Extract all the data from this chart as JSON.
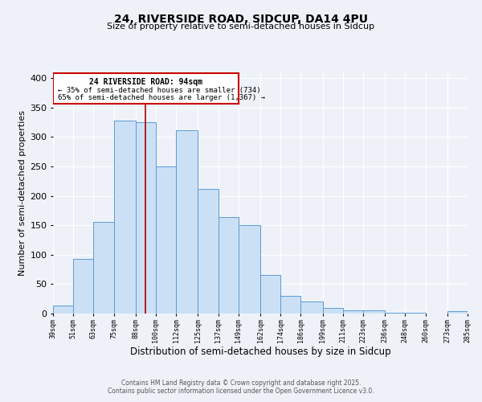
{
  "title": "24, RIVERSIDE ROAD, SIDCUP, DA14 4PU",
  "subtitle": "Size of property relative to semi-detached houses in Sidcup",
  "xlabel": "Distribution of semi-detached houses by size in Sidcup",
  "ylabel": "Number of semi-detached properties",
  "bins": [
    39,
    51,
    63,
    75,
    88,
    100,
    112,
    125,
    137,
    149,
    162,
    174,
    186,
    199,
    211,
    223,
    236,
    248,
    260,
    273,
    285
  ],
  "counts": [
    14,
    93,
    156,
    328,
    325,
    250,
    312,
    212,
    164,
    150,
    65,
    30,
    21,
    9,
    5,
    5,
    1,
    1,
    0,
    4
  ],
  "tick_labels": [
    "39sqm",
    "51sqm",
    "63sqm",
    "75sqm",
    "88sqm",
    "100sqm",
    "112sqm",
    "125sqm",
    "137sqm",
    "149sqm",
    "162sqm",
    "174sqm",
    "186sqm",
    "199sqm",
    "211sqm",
    "223sqm",
    "236sqm",
    "248sqm",
    "260sqm",
    "273sqm",
    "285sqm"
  ],
  "bar_fill": "#cce0f5",
  "bar_edge": "#5b9bd5",
  "property_line_x": 94,
  "property_line_color": "#aa0000",
  "annotation_title": "24 RIVERSIDE ROAD: 94sqm",
  "annotation_line1": "← 35% of semi-detached houses are smaller (734)",
  "annotation_line2": "65% of semi-detached houses are larger (1,367) →",
  "annotation_box_color": "#cc0000",
  "ylim": [
    0,
    410
  ],
  "bg_color": "#eef2f8",
  "grid_color": "#ffffff",
  "footer1": "Contains HM Land Registry data © Crown copyright and database right 2025.",
  "footer2": "Contains public sector information licensed under the Open Government Licence v3.0."
}
